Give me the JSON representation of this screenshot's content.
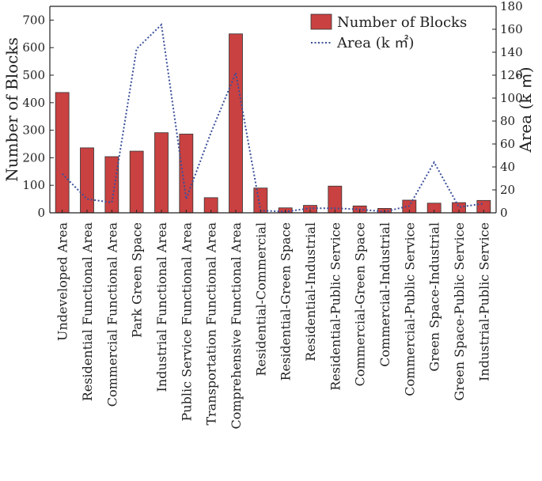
{
  "chart_data": {
    "type": "bar",
    "categories": [
      "Undeveloped Area",
      "Residential Functional Area",
      "Commercial Functional Area",
      "Park Green Space",
      "Industrial Functional Area",
      "Public Service Functional Area",
      "Transportation Functional Area",
      "Comprehensive Functional Area",
      "Residential-Commercial",
      "Residential-Green Space",
      "Residential-Industrial",
      "Residential-Public Service",
      "Commercial-Green Space",
      "Commercial-Industrial",
      "Commercial-Public Service",
      "Green Space-Industrial",
      "Green Space-Public Service",
      "Industrial-Public Service"
    ],
    "series": [
      {
        "name": "Number of Blocks",
        "type": "bar",
        "axis": "left",
        "color": "#c94141",
        "values": [
          437,
          236,
          204,
          224,
          291,
          286,
          55,
          650,
          90,
          18,
          27,
          97,
          25,
          16,
          46,
          35,
          37,
          45
        ]
      },
      {
        "name": "Area (k ㎡)",
        "type": "line",
        "axis": "right",
        "style": "dotted",
        "color": "#3a4f9a",
        "values": [
          34,
          12,
          9,
          143,
          164,
          12,
          70,
          122,
          2,
          1,
          4,
          4,
          3,
          1,
          6,
          44,
          5,
          8
        ]
      }
    ],
    "ylabel": "Number of Blocks",
    "y2label": "Area (k ㎡)",
    "ylim": [
      0,
      750
    ],
    "yticks": [
      0,
      100,
      200,
      300,
      400,
      500,
      600,
      700
    ],
    "y2lim": [
      0,
      180
    ],
    "y2ticks": [
      0,
      20,
      40,
      60,
      80,
      100,
      120,
      140,
      160,
      180
    ],
    "legend": "top-right",
    "grid": false
  }
}
